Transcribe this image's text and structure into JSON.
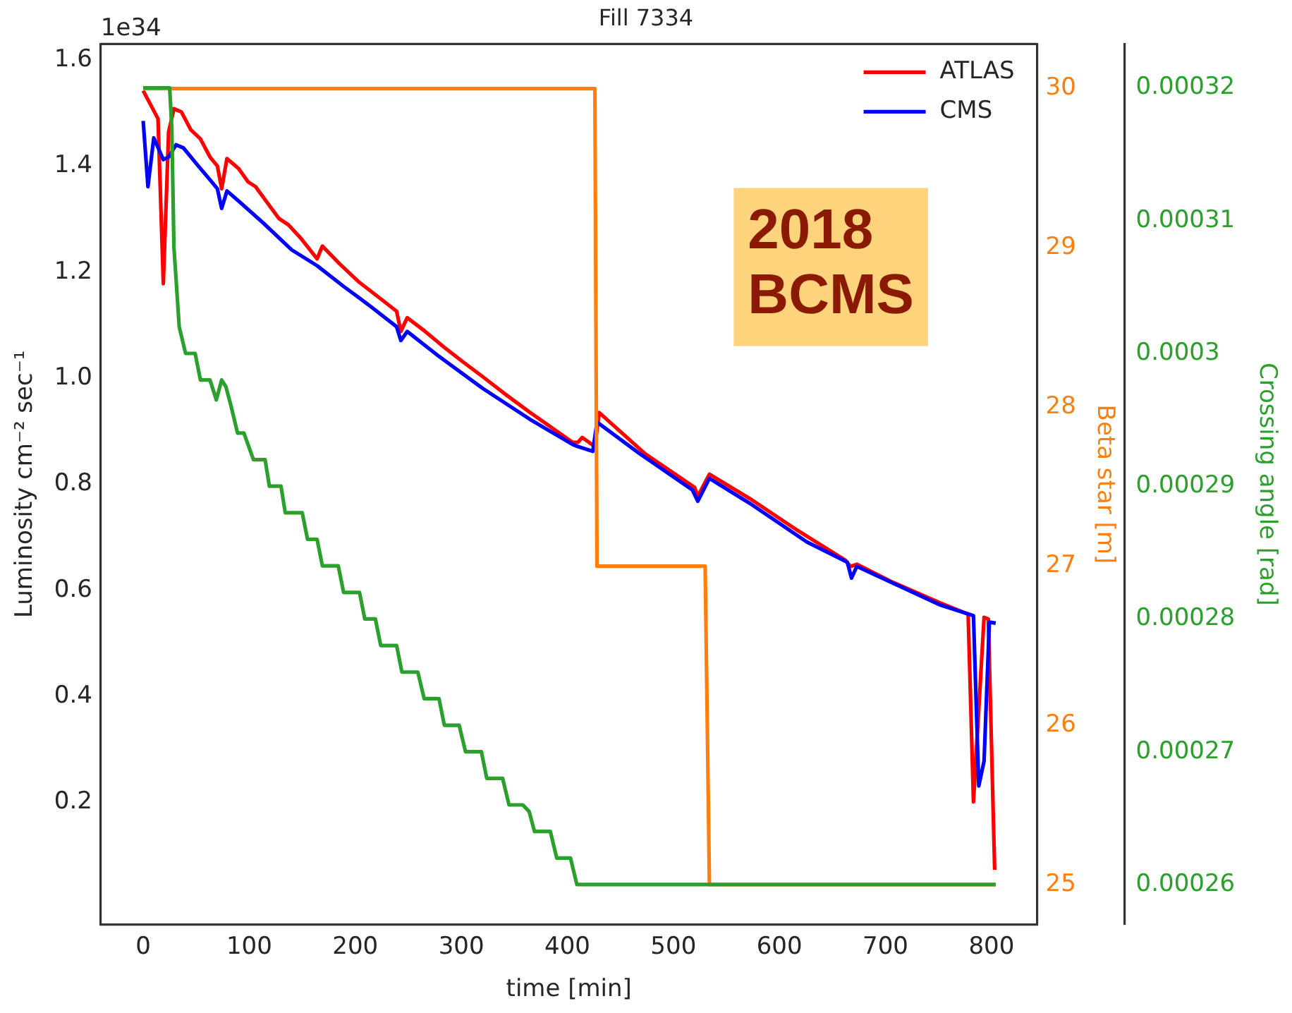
{
  "chart_data": {
    "type": "line",
    "title": "Fill 7334",
    "xlabel": "time [min]",
    "ylabel": "Luminosity cm⁻² sec⁻¹",
    "y2label": "Beta star [m]",
    "y3label": "Crossing angle [rad]",
    "annotations": [
      "1e34",
      "2018\nBCMS"
    ],
    "xlim": [
      -40,
      843
    ],
    "xticks": [
      0,
      100,
      200,
      300,
      400,
      500,
      600,
      700,
      800
    ],
    "ylim": [
      -0.03,
      1.63
    ],
    "yticks": [
      0.2,
      0.4,
      0.6,
      0.8,
      {
        "value": 1,
        "label": "1.0"
      },
      1.2,
      1.4,
      1.6
    ],
    "y2lim": [
      24.75,
      30.28
    ],
    "y2ticks": [
      25,
      26,
      27,
      28,
      29,
      30
    ],
    "y3lim": [
      0.000257,
      0.0003233
    ],
    "y3ticks": [
      0.00026,
      0.00027,
      0.00028,
      0.00029,
      0.0003,
      0.00031,
      0.00032
    ],
    "grid": false,
    "legend": "top right",
    "marker": "none",
    "line_style": "solid",
    "series": [
      {
        "name": "ATLAS",
        "color": "#ff0000",
        "x": [
          0,
          14,
          19,
          24,
          29,
          36,
          45,
          54,
          63,
          70,
          74,
          79,
          90,
          99,
          106,
          117,
          128,
          137,
          149,
          164,
          169,
          185,
          203,
          225,
          239,
          243,
          249,
          266,
          284,
          302,
          320,
          342,
          365,
          405,
          410,
          414,
          426,
          430,
          473,
          520,
          523,
          534,
          572,
          617,
          662,
          667,
          673,
          707,
          752,
          778,
          783,
          793,
          797,
          803
        ],
        "values": [
          1.542,
          1.489,
          1.178,
          1.464,
          1.508,
          1.502,
          1.468,
          1.451,
          1.417,
          1.4,
          1.357,
          1.414,
          1.395,
          1.37,
          1.361,
          1.331,
          1.301,
          1.289,
          1.263,
          1.225,
          1.249,
          1.216,
          1.182,
          1.148,
          1.126,
          1.088,
          1.114,
          1.088,
          1.058,
          1.03,
          1.003,
          0.969,
          0.935,
          0.879,
          0.879,
          0.888,
          0.871,
          0.935,
          0.858,
          0.794,
          0.777,
          0.819,
          0.773,
          0.713,
          0.657,
          0.645,
          0.649,
          0.615,
          0.576,
          0.555,
          0.201,
          0.549,
          0.546,
          0.073
        ]
      },
      {
        "name": "CMS",
        "color": "#0000ff",
        "x": [
          0,
          4.5,
          10,
          19,
          24,
          31,
          38,
          52,
          63,
          70,
          74,
          79,
          90,
          113,
          140,
          164,
          189,
          212,
          239,
          243,
          249,
          279,
          320,
          365,
          405,
          410,
          424,
          428,
          468,
          518,
          523,
          534,
          572,
          626,
          664,
          668,
          673,
          752,
          783,
          788,
          793,
          798,
          804
        ],
        "values": [
          1.485,
          1.361,
          1.453,
          1.412,
          1.417,
          1.44,
          1.434,
          1.4,
          1.374,
          1.357,
          1.32,
          1.353,
          1.334,
          1.293,
          1.242,
          1.212,
          1.173,
          1.139,
          1.097,
          1.071,
          1.088,
          1.041,
          0.981,
          0.922,
          0.875,
          0.871,
          0.862,
          0.917,
          0.858,
          0.789,
          0.768,
          0.811,
          0.764,
          0.691,
          0.653,
          0.623,
          0.645,
          0.572,
          0.552,
          0.231,
          0.278,
          0.54,
          0.538
        ]
      },
      {
        "color": "#ff7f0e",
        "axis": "y2",
        "x": [
          0,
          426,
          428,
          530,
          534,
          804
        ],
        "values": [
          30,
          30,
          27,
          27,
          25,
          25
        ]
      },
      {
        "color": "#2ca02c",
        "axis": "y3",
        "x": [
          0,
          25,
          27,
          29,
          34,
          40,
          49,
          54,
          63,
          69,
          74,
          78,
          83,
          89,
          95,
          104,
          115,
          119,
          130,
          134,
          150,
          155,
          164,
          169,
          184,
          189,
          204,
          209,
          219,
          224,
          239,
          244,
          259,
          265,
          279,
          284,
          298,
          304,
          319,
          324,
          339,
          345,
          358,
          364,
          369,
          384,
          390,
          403,
          409,
          804
        ],
        "values": [
          0.00032,
          0.00032,
          0.000317,
          0.000308,
          0.000302,
          0.0003,
          0.0003,
          0.000298,
          0.000298,
          0.0002965,
          0.000298,
          0.0002975,
          0.000296,
          0.000294,
          0.000294,
          0.000292,
          0.000292,
          0.00029,
          0.00029,
          0.000288,
          0.000288,
          0.000286,
          0.000286,
          0.000284,
          0.000284,
          0.000282,
          0.000282,
          0.00028,
          0.00028,
          0.000278,
          0.000278,
          0.000276,
          0.000276,
          0.000274,
          0.000274,
          0.000272,
          0.000272,
          0.00027,
          0.00027,
          0.000268,
          0.000268,
          0.000266,
          0.000266,
          0.0002655,
          0.000264,
          0.000264,
          0.000262,
          0.000262,
          0.00026,
          0.00026
        ]
      }
    ]
  }
}
